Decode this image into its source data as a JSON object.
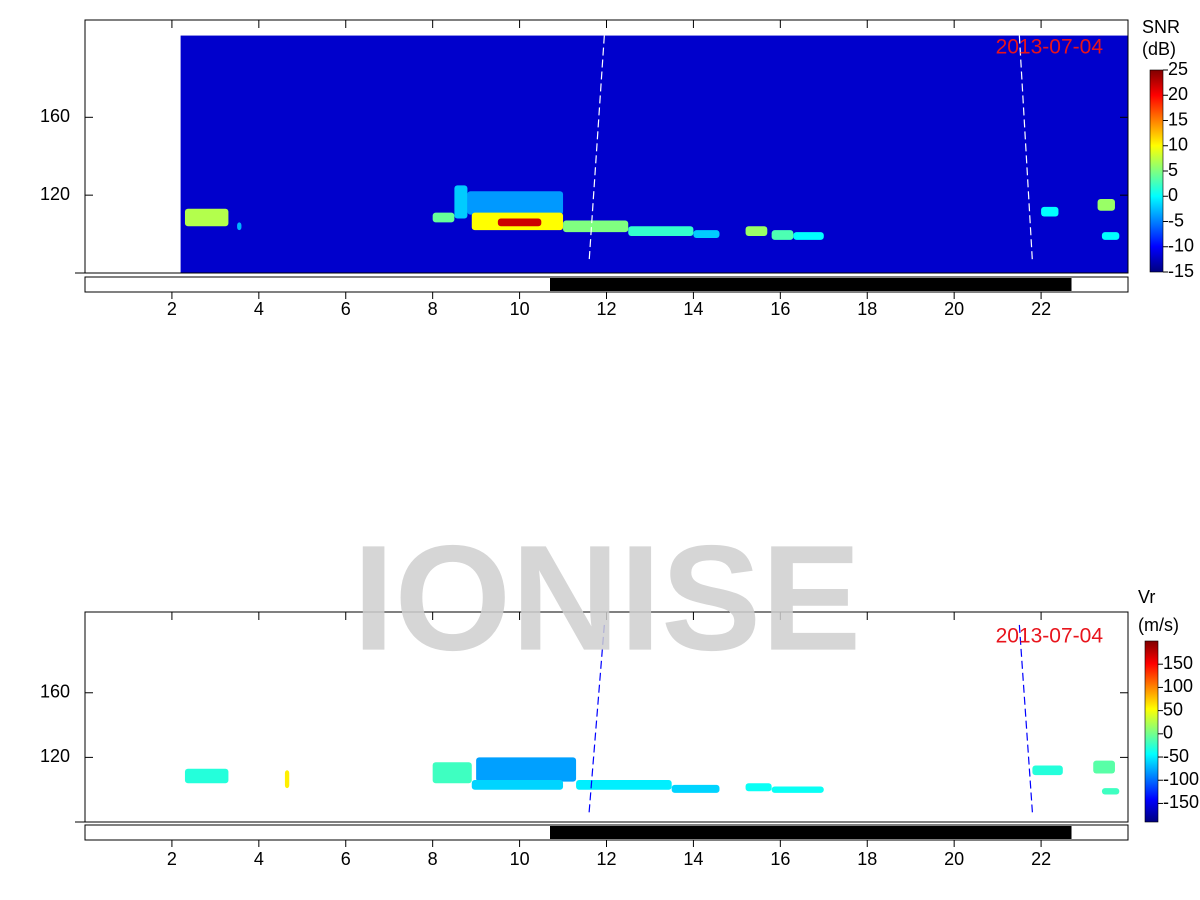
{
  "watermark": "IONISE",
  "chart_data": [
    {
      "type": "heatmap",
      "colorbar_title": [
        "SNR",
        "(dB)"
      ],
      "date_label": "2013-07-04",
      "colormap": "jet",
      "xlim": [
        0,
        24
      ],
      "xticks": [
        2,
        4,
        6,
        8,
        10,
        12,
        14,
        16,
        18,
        20,
        22
      ],
      "ylim": [
        80,
        210
      ],
      "yticks": [
        120,
        160
      ],
      "clim": [
        -15,
        25
      ],
      "cticks": [
        -15,
        -10,
        -5,
        0,
        5,
        10,
        15,
        20,
        25
      ],
      "coverage": {
        "x": [
          2.2,
          24
        ],
        "y": [
          80,
          202
        ],
        "value": -12
      },
      "shade": {
        "start": 10.7,
        "end": 22.7
      },
      "lines": [
        {
          "color": "#ffffff",
          "x": [
            11.95,
            11.6
          ],
          "y": [
            202,
            86
          ]
        },
        {
          "color": "#ffffff",
          "x": [
            21.5,
            21.8
          ],
          "y": [
            202,
            86
          ]
        }
      ],
      "echoes": [
        {
          "x": [
            2.3,
            3.3
          ],
          "y": [
            104,
            113
          ],
          "value": 7
        },
        {
          "x": [
            3.5,
            3.6
          ],
          "y": [
            102,
            106
          ],
          "value": -3
        },
        {
          "x": [
            8.0,
            8.5
          ],
          "y": [
            106,
            111
          ],
          "value": 4
        },
        {
          "x": [
            8.5,
            8.8
          ],
          "y": [
            108,
            125
          ],
          "value": -2
        },
        {
          "x": [
            8.8,
            11.0
          ],
          "y": [
            110,
            122
          ],
          "value": -4
        },
        {
          "x": [
            8.9,
            11.0
          ],
          "y": [
            102,
            111
          ],
          "value": 10
        },
        {
          "x": [
            9.5,
            10.5
          ],
          "y": [
            104,
            108
          ],
          "value": 22
        },
        {
          "x": [
            11.0,
            12.5
          ],
          "y": [
            101,
            107
          ],
          "value": 5
        },
        {
          "x": [
            12.5,
            14.0
          ],
          "y": [
            99,
            104
          ],
          "value": 2
        },
        {
          "x": [
            14.0,
            14.6
          ],
          "y": [
            98,
            102
          ],
          "value": -2
        },
        {
          "x": [
            15.2,
            15.7
          ],
          "y": [
            99,
            104
          ],
          "value": 6
        },
        {
          "x": [
            15.8,
            16.3
          ],
          "y": [
            97,
            102
          ],
          "value": 3
        },
        {
          "x": [
            16.3,
            17.0
          ],
          "y": [
            97,
            101
          ],
          "value": 0
        },
        {
          "x": [
            22.0,
            22.4
          ],
          "y": [
            109,
            114
          ],
          "value": 0
        },
        {
          "x": [
            23.3,
            23.7
          ],
          "y": [
            112,
            118
          ],
          "value": 6
        },
        {
          "x": [
            23.4,
            23.8
          ],
          "y": [
            97,
            101
          ],
          "value": 0
        }
      ]
    },
    {
      "type": "heatmap",
      "colorbar_title": [
        "Vr",
        "(m/s)"
      ],
      "date_label": "2013-07-04",
      "colormap": "jet",
      "xlim": [
        0,
        24
      ],
      "xticks": [
        2,
        4,
        6,
        8,
        10,
        12,
        14,
        16,
        18,
        20,
        22
      ],
      "ylim": [
        80,
        210
      ],
      "yticks": [
        120,
        160
      ],
      "clim": [
        -190,
        200
      ],
      "cticks": [
        -150,
        -100,
        -50,
        0,
        50,
        100,
        150
      ],
      "shade": {
        "start": 10.7,
        "end": 22.7
      },
      "lines": [
        {
          "color": "#0000ff",
          "x": [
            11.95,
            11.6
          ],
          "y": [
            202,
            86
          ]
        },
        {
          "color": "#0000ff",
          "x": [
            21.5,
            21.8
          ],
          "y": [
            202,
            86
          ]
        }
      ],
      "echoes": [
        {
          "x": [
            2.3,
            3.3
          ],
          "y": [
            104,
            113
          ],
          "value": -30
        },
        {
          "x": [
            4.6,
            4.7
          ],
          "y": [
            101,
            112
          ],
          "value": 60
        },
        {
          "x": [
            8.0,
            8.9
          ],
          "y": [
            104,
            117
          ],
          "value": -20
        },
        {
          "x": [
            9.0,
            11.3
          ],
          "y": [
            105,
            120
          ],
          "value": -80
        },
        {
          "x": [
            8.9,
            11.0
          ],
          "y": [
            100,
            106
          ],
          "value": -60
        },
        {
          "x": [
            11.3,
            13.5
          ],
          "y": [
            100,
            106
          ],
          "value": -50
        },
        {
          "x": [
            13.5,
            14.6
          ],
          "y": [
            98,
            103
          ],
          "value": -60
        },
        {
          "x": [
            15.2,
            15.8
          ],
          "y": [
            99,
            104
          ],
          "value": -40
        },
        {
          "x": [
            15.8,
            17.0
          ],
          "y": [
            98,
            102
          ],
          "value": -40
        },
        {
          "x": [
            21.8,
            22.5
          ],
          "y": [
            109,
            115
          ],
          "value": -30
        },
        {
          "x": [
            23.2,
            23.7
          ],
          "y": [
            110,
            118
          ],
          "value": -10
        },
        {
          "x": [
            23.4,
            23.8
          ],
          "y": [
            97,
            101
          ],
          "value": -20
        }
      ]
    }
  ]
}
